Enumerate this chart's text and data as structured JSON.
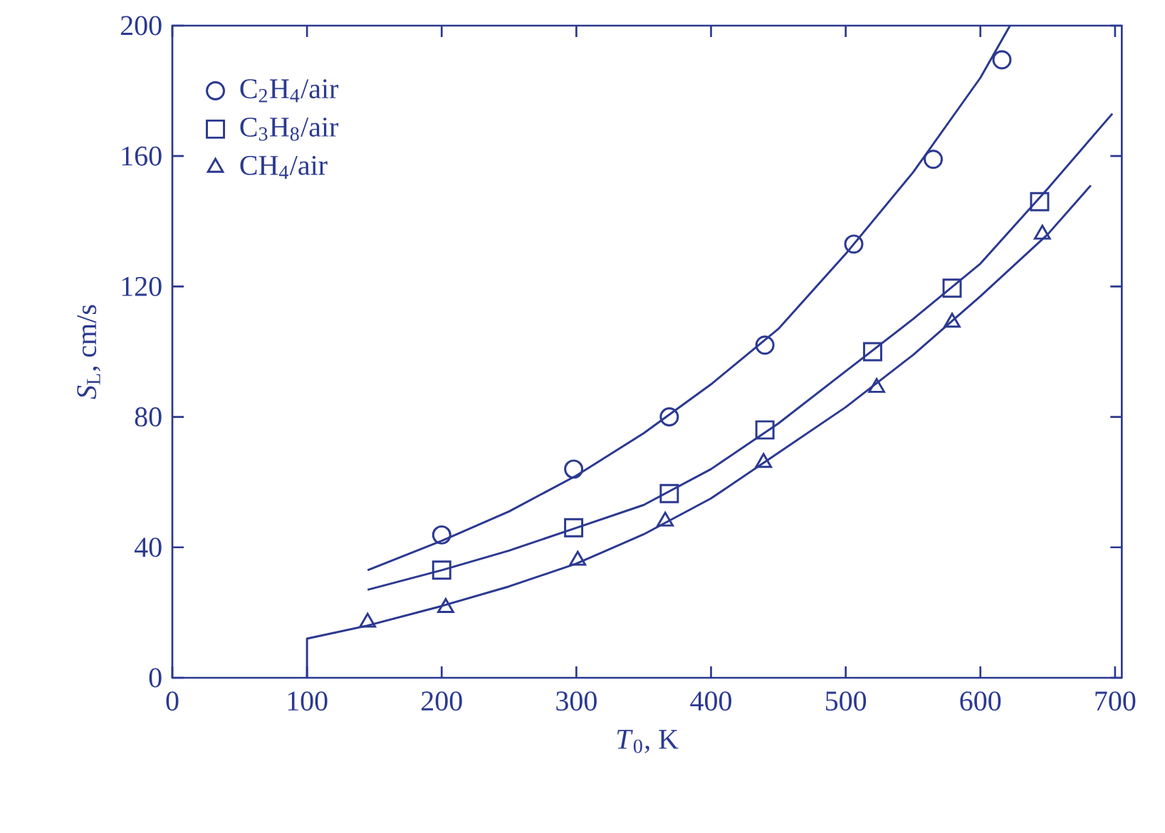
{
  "chart_data": {
    "type": "line",
    "xlabel": "*T*$_{0}$, K",
    "ylabel": "*S*$_{L}$, cm/s",
    "xlim": [
      0,
      705
    ],
    "ylim": [
      0,
      200
    ],
    "xticks": [
      0,
      100,
      200,
      300,
      400,
      500,
      600,
      700
    ],
    "yticks": [
      0,
      40,
      80,
      120,
      160,
      200
    ],
    "legend": "top left",
    "series": [
      {
        "name": "C$_{2}$H$_{4}$/air",
        "type": "scatter",
        "marker": "circle",
        "color": "#2b3990",
        "x": [
          200,
          298,
          369,
          440,
          506,
          565,
          616
        ],
        "values": [
          43.8,
          64,
          80,
          102,
          133,
          159,
          189.5
        ]
      },
      {
        "name": "C$_{3}$H$_{8}$/air",
        "type": "scatter",
        "marker": "square",
        "color": "#2b3990",
        "x": [
          200,
          298,
          369,
          440,
          520,
          579,
          644
        ],
        "values": [
          33,
          46,
          56.5,
          76,
          100,
          119.5,
          146
        ]
      },
      {
        "name": "CH$_{4}$/air",
        "type": "scatter",
        "marker": "triangle",
        "color": "#2b3990",
        "x": [
          145,
          203,
          301,
          366,
          439,
          523,
          579,
          646
        ],
        "values": [
          17,
          21.5,
          36,
          48,
          66,
          89,
          109,
          136
        ]
      },
      {
        "marker": "none",
        "color": "#2b3990",
        "x": [
          145,
          200,
          250,
          300,
          350,
          400,
          450,
          500,
          550,
          600,
          622
        ],
        "values": [
          33,
          42,
          51,
          62,
          75,
          90,
          107,
          130,
          155,
          184,
          200
        ]
      },
      {
        "marker": "none",
        "color": "#2b3990",
        "x": [
          145,
          200,
          250,
          300,
          350,
          400,
          450,
          500,
          550,
          600,
          650,
          698
        ],
        "values": [
          27,
          33,
          39,
          46,
          53,
          64,
          78,
          94,
          110,
          127,
          150,
          173
        ]
      },
      {
        "marker": "none",
        "color": "#2b3990",
        "x": [
          100,
          100,
          145,
          200,
          250,
          300,
          350,
          400,
          450,
          500,
          550,
          600,
          650,
          682
        ],
        "values": [
          0,
          12,
          16,
          22,
          28,
          35,
          44,
          55,
          69,
          83,
          99,
          117,
          136,
          151
        ]
      }
    ]
  }
}
